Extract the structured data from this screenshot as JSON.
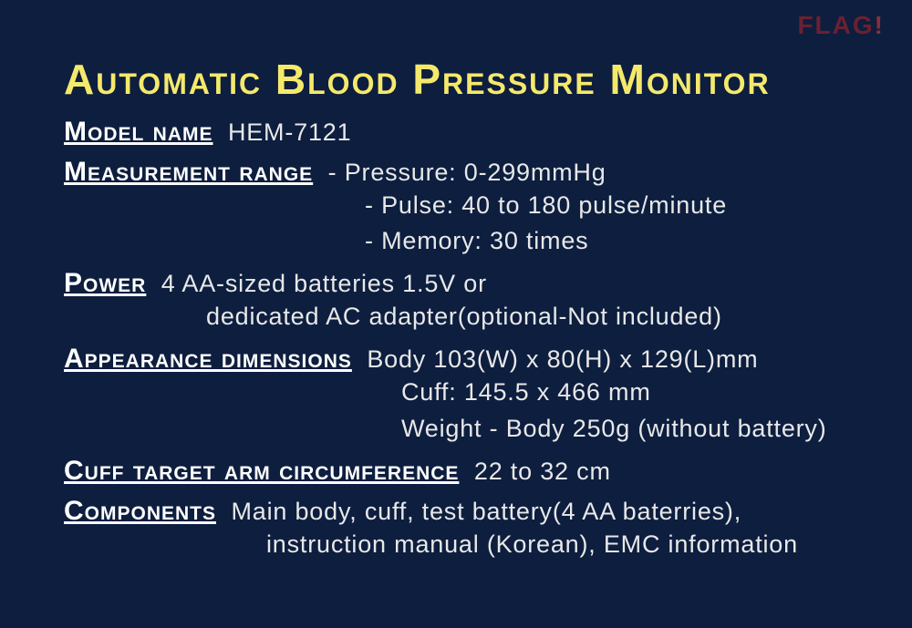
{
  "colors": {
    "background": "#0d1e3f",
    "title": "#f5e96b",
    "label": "#ffffff",
    "value": "#e8e8e8",
    "watermark": "#6b2030",
    "watermark_bang": "#8a2e3a"
  },
  "typography": {
    "title_fontsize": 46,
    "label_fontsize": 30,
    "value_fontsize": 27,
    "font_variant": "small-caps",
    "letterspacing_title": 2,
    "letterspacing_label": 1
  },
  "watermark": {
    "text": "FLAG!",
    "main": "FLAG",
    "bang": "!"
  },
  "title": "Automatic Blood Pressure Monitor",
  "model": {
    "label": "Model name",
    "value": "HEM-7121"
  },
  "measurement": {
    "label": "Measurement range",
    "line1": "- Pressure: 0-299mmHg",
    "line2": "- Pulse: 40 to 180 pulse/minute",
    "line3": "- Memory: 30 times"
  },
  "power": {
    "label": "Power",
    "line1": "4 AA-sized batteries 1.5V or",
    "line2": "dedicated AC adapter(optional-Not included)"
  },
  "appearance": {
    "label": "Appearance dimensions",
    "line1": "Body 103(W) x 80(H) x 129(L)mm",
    "line2": "Cuff: 145.5 x 466 mm",
    "line3": "Weight - Body 250g (without battery)"
  },
  "cuff": {
    "label": "Cuff target arm circumference",
    "value": "22 to 32 cm"
  },
  "components": {
    "label": "Components",
    "line1": "Main body, cuff, test battery(4 AA baterries),",
    "line2": "instruction manual (Korean), EMC information"
  }
}
